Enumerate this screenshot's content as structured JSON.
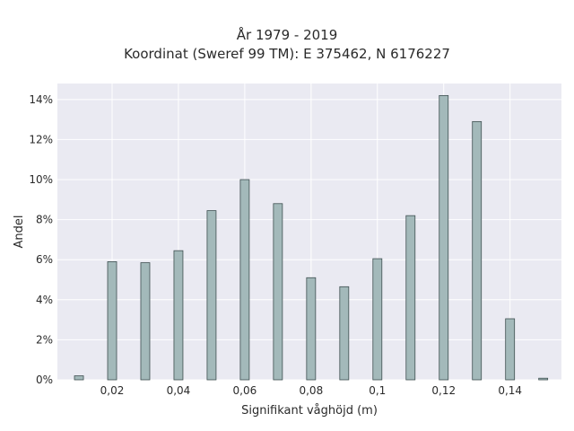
{
  "chart_data": {
    "type": "bar",
    "title": "År 1979 - 2019",
    "subtitle": "Koordinat (Sweref 99 TM): E 375462, N 6176227",
    "xlabel": "Signifikant våghöjd (m)",
    "ylabel": "Andel",
    "x": [
      0.01,
      0.02,
      0.03,
      0.04,
      0.05,
      0.06,
      0.07,
      0.08,
      0.09,
      0.1,
      0.11,
      0.12,
      0.13,
      0.14,
      0.15
    ],
    "values": [
      0.2,
      5.9,
      5.85,
      6.45,
      8.45,
      10.0,
      8.8,
      5.1,
      4.65,
      6.05,
      8.2,
      14.2,
      12.9,
      3.05,
      0.08
    ],
    "xlim": [
      0.0035,
      0.1555
    ],
    "ylim": [
      0,
      14.8
    ],
    "x_ticks": [
      0.02,
      0.04,
      0.06,
      0.08,
      0.1,
      0.12,
      0.14
    ],
    "x_tick_labels": [
      "0,02",
      "0,04",
      "0,06",
      "0,08",
      "0,1",
      "0,12",
      "0,14"
    ],
    "y_ticks": [
      0,
      2,
      4,
      6,
      8,
      10,
      12,
      14
    ],
    "y_tick_labels": [
      "0%",
      "2%",
      "4%",
      "6%",
      "8%",
      "10%",
      "12%",
      "14%"
    ],
    "grid": true,
    "colors": {
      "bar_fill": "#a3b9ba",
      "bar_edge": "#3e4f50",
      "plot_bg": "#eaeaf2",
      "grid": "#ffffff"
    }
  }
}
